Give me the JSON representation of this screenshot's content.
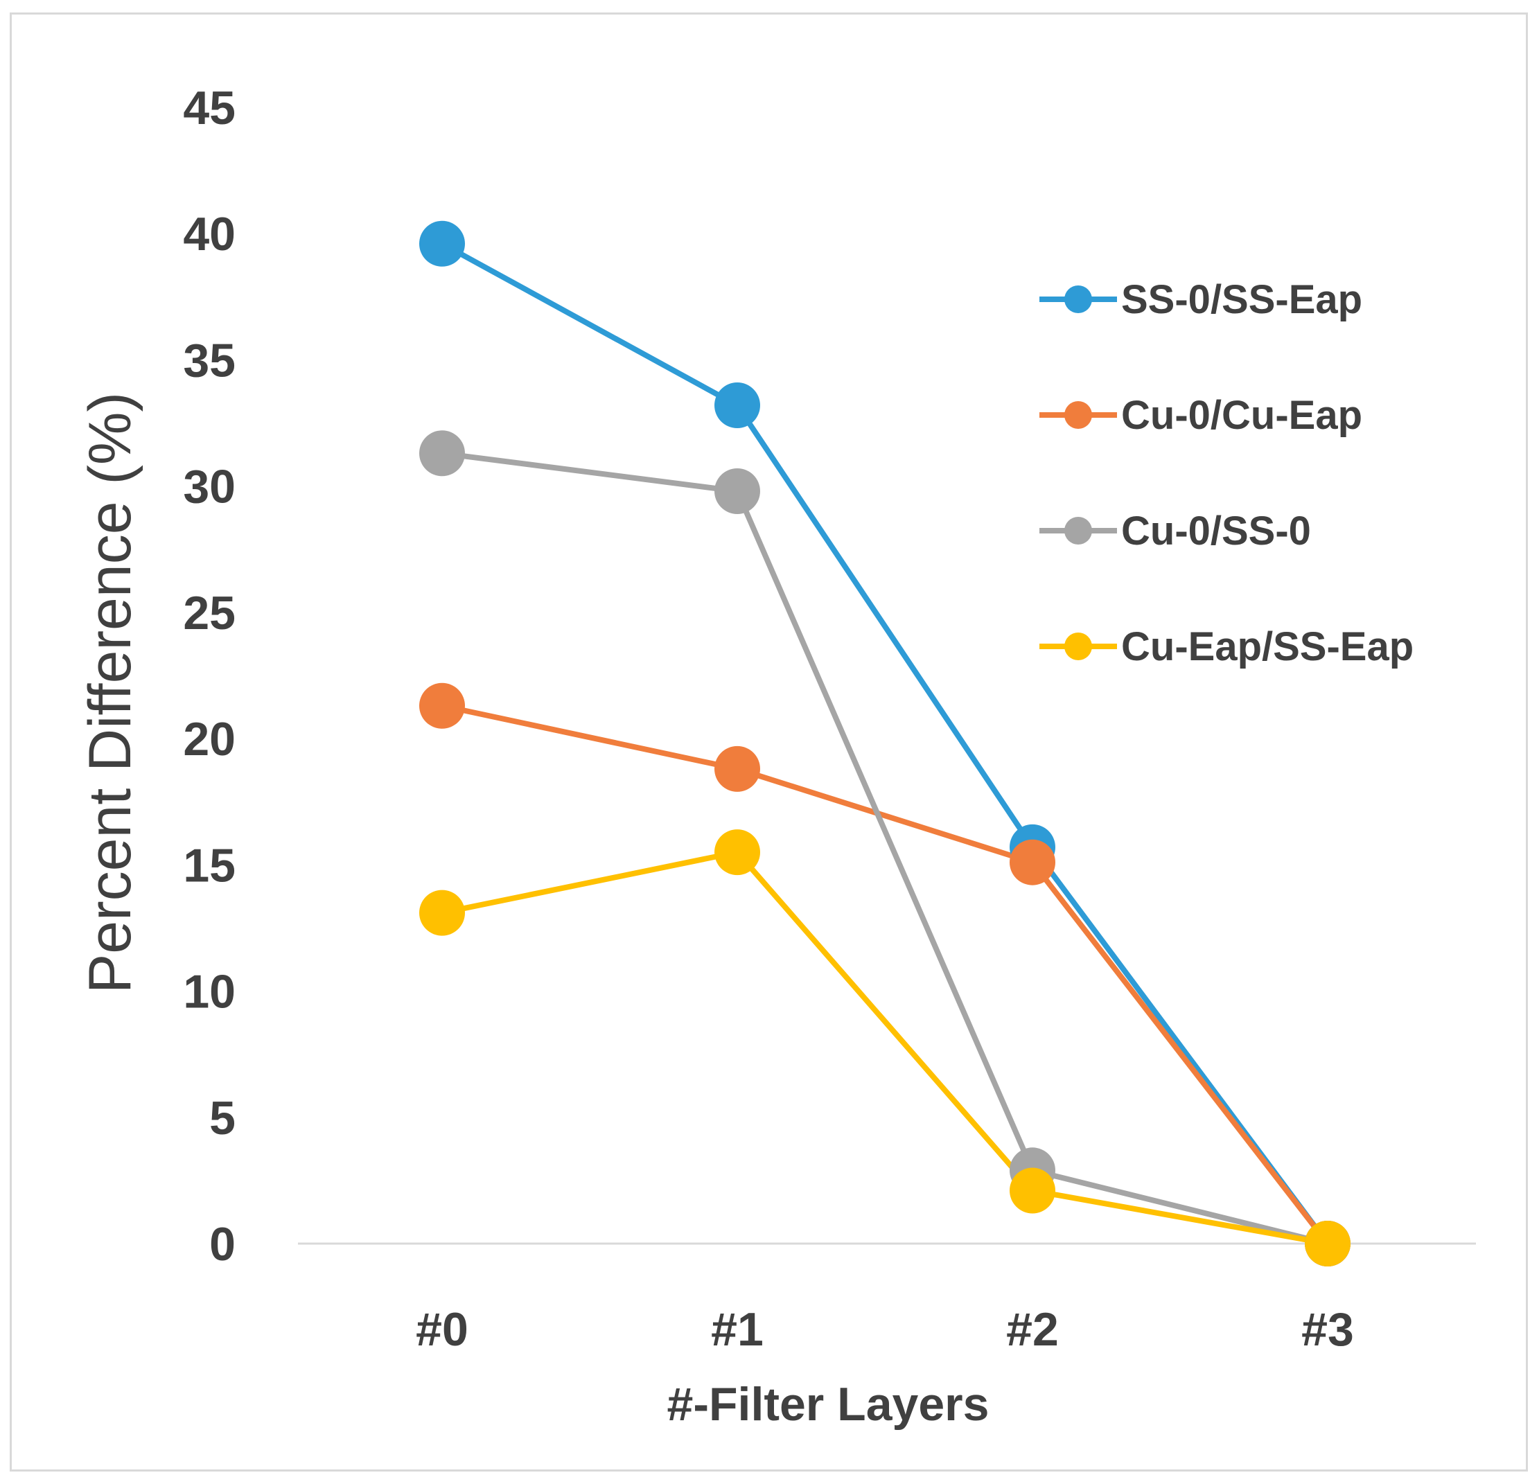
{
  "chart_data": {
    "type": "line",
    "title": "",
    "xlabel": "#-Filter Layers",
    "ylabel": "Percent Difference (%)",
    "categories": [
      "#0",
      "#1",
      "#2",
      "#3"
    ],
    "ylim": [
      0,
      45
    ],
    "yticks": [
      0,
      5,
      10,
      15,
      20,
      25,
      30,
      35,
      40,
      45
    ],
    "ytick_labels": [
      "0",
      "5",
      "10",
      "15",
      "20",
      "25",
      "30",
      "35",
      "40",
      "45"
    ],
    "grid": false,
    "legend_position": "right",
    "series": [
      {
        "name": "SS-0/SS-Eap",
        "color": "#2e9bd6",
        "values": [
          39.6,
          33.2,
          15.7,
          0
        ]
      },
      {
        "name": "Cu-0/Cu-Eap",
        "color": "#f07d3c",
        "values": [
          21.3,
          18.8,
          15.1,
          0
        ]
      },
      {
        "name": "Cu-0/SS-0",
        "color": "#a5a5a5",
        "values": [
          31.3,
          29.8,
          2.9,
          0
        ]
      },
      {
        "name": "Cu-Eap/SS-Eap",
        "color": "#ffc000",
        "values": [
          13.1,
          15.5,
          2.1,
          0
        ]
      }
    ]
  }
}
